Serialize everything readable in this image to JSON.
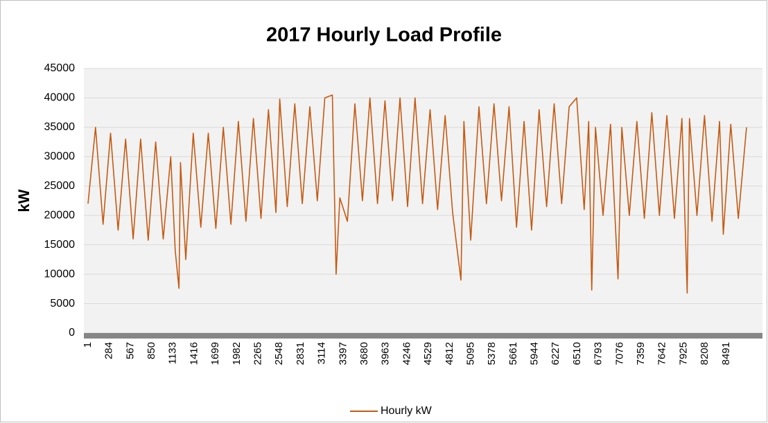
{
  "chart_data": {
    "type": "line",
    "title": "2017 Hourly Load Profile",
    "y_label": "kW",
    "series": [
      {
        "name": "Hourly kW",
        "color": "#c55a11",
        "x": [
          1,
          101,
          201,
          301,
          401,
          501,
          601,
          701,
          801,
          901,
          1001,
          1101,
          1161,
          1211,
          1231,
          1301,
          1401,
          1501,
          1601,
          1701,
          1801,
          1901,
          2001,
          2101,
          2201,
          2301,
          2401,
          2501,
          2551,
          2651,
          2751,
          2851,
          2951,
          3051,
          3151,
          3251,
          3301,
          3351,
          3451,
          3551,
          3651,
          3751,
          3851,
          3951,
          4051,
          4151,
          4251,
          4351,
          4451,
          4551,
          4651,
          4751,
          4851,
          4961,
          5001,
          5091,
          5201,
          5301,
          5401,
          5501,
          5601,
          5701,
          5801,
          5901,
          6001,
          6101,
          6201,
          6301,
          6401,
          6501,
          6601,
          6661,
          6701,
          6751,
          6851,
          6951,
          7051,
          7101,
          7201,
          7301,
          7401,
          7501,
          7601,
          7701,
          7801,
          7901,
          7971,
          8001,
          8101,
          8201,
          8301,
          8401,
          8451,
          8551,
          8651,
          8760
        ],
        "values": [
          22000,
          35000,
          18500,
          34000,
          17500,
          33000,
          16000,
          33000,
          15800,
          32500,
          16000,
          30000,
          14000,
          7600,
          29000,
          12500,
          34000,
          18000,
          34000,
          17800,
          35000,
          18500,
          36000,
          19000,
          36500,
          19500,
          38000,
          20500,
          39800,
          21500,
          39000,
          22000,
          38500,
          22500,
          40000,
          40500,
          10000,
          23000,
          19000,
          39000,
          22500,
          40000,
          22000,
          39500,
          22500,
          40000,
          21500,
          40000,
          22000,
          38000,
          21000,
          37000,
          20500,
          9000,
          36000,
          15800,
          38500,
          22000,
          39000,
          22500,
          38500,
          18000,
          36000,
          17500,
          38000,
          21500,
          39000,
          22000,
          38500,
          40000,
          21000,
          36000,
          7300,
          35000,
          20000,
          35500,
          9200,
          35000,
          20000,
          36000,
          19500,
          37500,
          20000,
          37000,
          19500,
          36500,
          6800,
          36500,
          20000,
          37000,
          19000,
          36000,
          16800,
          35500,
          19500,
          35000
        ]
      }
    ],
    "xlim": [
      1,
      8760
    ],
    "xticks": [
      1,
      284,
      567,
      850,
      1133,
      1416,
      1699,
      1982,
      2265,
      2548,
      2831,
      3114,
      3397,
      3680,
      3963,
      4246,
      4529,
      4812,
      5095,
      5378,
      5661,
      5944,
      6227,
      6510,
      6793,
      7076,
      7359,
      7642,
      7925,
      8208,
      8491
    ],
    "ylim": [
      0,
      45000
    ],
    "yticks": [
      0,
      5000,
      10000,
      15000,
      20000,
      25000,
      30000,
      35000,
      40000,
      45000
    ],
    "grid": true,
    "legend": "bottom"
  }
}
